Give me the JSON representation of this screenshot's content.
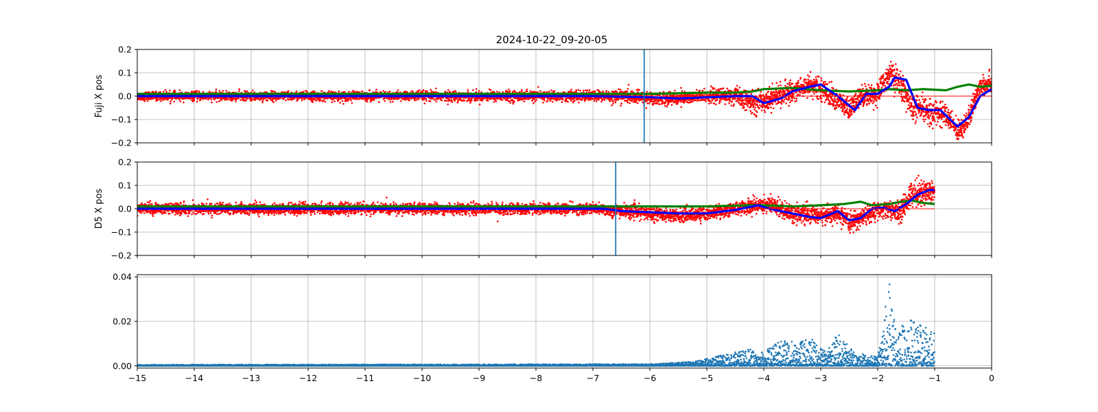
{
  "figure": {
    "title": "2024-10-22_09-20-05"
  },
  "chart_data": [
    {
      "type": "scatter",
      "ylabel": "Fuji X pos",
      "xlim": [
        -15,
        0
      ],
      "ylim": [
        -0.2,
        0.2
      ],
      "yticks": [
        -0.2,
        -0.1,
        0.0,
        0.1,
        0.2
      ],
      "ytick_labels": [
        "−0.2",
        "−0.1",
        "0.0",
        "0.1",
        "0.2"
      ],
      "grid": true,
      "vline_x": -6.1,
      "hline_y": 0.0,
      "hline_range": [
        -4.0,
        0.0
      ],
      "colors": {
        "scatter": "#ff0000",
        "green": "#008000",
        "blue": "#0000ff",
        "vline": "#1f77b4"
      },
      "series": [
        {
          "color": "red",
          "style": "scatter-noise",
          "x": [
            -15,
            -7,
            -6.5,
            -6.0,
            -5.5,
            -5.0,
            -4.5,
            -4.2,
            -4.0,
            -3.5,
            -3.2,
            -3.0,
            -2.7,
            -2.5,
            -2.3,
            -2.0,
            -1.8,
            -1.6,
            -1.4,
            -1.2,
            -1.0,
            -0.8,
            -0.6,
            -0.4,
            -0.2,
            0.0
          ],
          "y": [
            0.0,
            0.0,
            0.0,
            -0.01,
            -0.01,
            0.0,
            0.0,
            -0.03,
            -0.02,
            0.02,
            0.05,
            0.03,
            -0.02,
            -0.06,
            0.0,
            0.01,
            0.1,
            0.05,
            -0.05,
            -0.06,
            -0.07,
            -0.08,
            -0.15,
            -0.1,
            0.05,
            0.06
          ],
          "spread": [
            0.02,
            0.025,
            0.03,
            0.03,
            0.03,
            0.03,
            0.04,
            0.05,
            0.05,
            0.05,
            0.05,
            0.05,
            0.05,
            0.05,
            0.05,
            0.05,
            0.06,
            0.06,
            0.06,
            0.06,
            0.06,
            0.05,
            0.05,
            0.05,
            0.05,
            0.05
          ]
        },
        {
          "color": "green",
          "style": "thick-line",
          "x": [
            -15,
            -6,
            -5,
            -4.5,
            -4.2,
            -4.0,
            -3.5,
            -3.0,
            -2.5,
            -2.0,
            -1.8,
            -1.5,
            -1.2,
            -0.8,
            -0.6,
            -0.4,
            -0.2,
            0.0
          ],
          "y": [
            0.01,
            0.01,
            0.015,
            0.015,
            0.02,
            0.03,
            0.035,
            0.025,
            0.02,
            0.025,
            0.03,
            0.025,
            0.03,
            0.025,
            0.04,
            0.05,
            0.04,
            0.045
          ]
        },
        {
          "color": "blue",
          "style": "thick-line",
          "x": [
            -15,
            -7,
            -6.0,
            -5.5,
            -5.0,
            -4.5,
            -4.2,
            -4.0,
            -3.7,
            -3.5,
            -3.2,
            -3.0,
            -2.7,
            -2.4,
            -2.2,
            -2.0,
            -1.8,
            -1.7,
            -1.5,
            -1.3,
            -1.1,
            -0.9,
            -0.6,
            -0.4,
            -0.2,
            0.0
          ],
          "y": [
            0.0,
            0.0,
            -0.005,
            -0.01,
            -0.005,
            0.0,
            0.0,
            -0.03,
            -0.01,
            0.02,
            0.04,
            0.05,
            0.0,
            -0.06,
            0.01,
            0.01,
            0.04,
            0.08,
            0.07,
            -0.05,
            -0.06,
            -0.06,
            -0.13,
            -0.09,
            0.0,
            0.03
          ]
        }
      ]
    },
    {
      "type": "scatter",
      "ylabel": "D5 X pos",
      "xlim": [
        -15,
        0
      ],
      "ylim": [
        -0.2,
        0.2
      ],
      "yticks": [
        -0.2,
        -0.1,
        0.0,
        0.1,
        0.2
      ],
      "ytick_labels": [
        "−0.2",
        "−0.1",
        "0.0",
        "0.1",
        "0.2"
      ],
      "grid": true,
      "vline_x": -6.6,
      "hline_y": 0.0,
      "hline_range": [
        -4.0,
        -1.0
      ],
      "colors": {
        "scatter": "#ff0000",
        "green": "#008000",
        "blue": "#0000ff",
        "vline": "#1f77b4"
      },
      "series": [
        {
          "color": "red",
          "style": "scatter-noise",
          "x": [
            -15,
            -7,
            -6.5,
            -6.0,
            -5.5,
            -5.0,
            -4.5,
            -4.0,
            -3.8,
            -3.5,
            -3.0,
            -2.7,
            -2.5,
            -2.3,
            -2.0,
            -1.8,
            -1.6,
            -1.4,
            -1.2,
            -1.0
          ],
          "y": [
            0.0,
            0.0,
            -0.01,
            -0.02,
            -0.03,
            -0.02,
            0.0,
            0.02,
            0.01,
            -0.02,
            -0.03,
            -0.02,
            -0.06,
            -0.04,
            -0.01,
            0.0,
            -0.02,
            0.07,
            0.07,
            0.08
          ],
          "spread": [
            0.025,
            0.025,
            0.03,
            0.03,
            0.03,
            0.03,
            0.03,
            0.04,
            0.04,
            0.04,
            0.04,
            0.04,
            0.04,
            0.04,
            0.04,
            0.04,
            0.05,
            0.06,
            0.06,
            0.05
          ]
        },
        {
          "color": "green",
          "style": "thick-line",
          "x": [
            -15,
            -6.5,
            -5.0,
            -4.2,
            -4.0,
            -3.5,
            -3.0,
            -2.6,
            -2.3,
            -2.1,
            -1.8,
            -1.6,
            -1.4,
            -1.2,
            -1.0
          ],
          "y": [
            0.01,
            0.01,
            0.01,
            0.015,
            0.015,
            0.01,
            0.015,
            0.02,
            0.03,
            0.015,
            0.02,
            0.03,
            0.035,
            0.025,
            0.02
          ]
        },
        {
          "color": "blue",
          "style": "thick-line",
          "x": [
            -15,
            -6.8,
            -6.5,
            -6.0,
            -5.5,
            -5.0,
            -4.5,
            -4.1,
            -3.9,
            -3.5,
            -3.2,
            -3.0,
            -2.7,
            -2.5,
            -2.3,
            -2.1,
            -1.9,
            -1.7,
            -1.5,
            -1.3,
            -1.1,
            -1.0
          ],
          "y": [
            0.0,
            0.0,
            -0.01,
            -0.015,
            -0.02,
            -0.02,
            -0.005,
            0.015,
            0.0,
            -0.02,
            -0.035,
            -0.04,
            -0.01,
            -0.05,
            -0.04,
            0.0,
            0.005,
            -0.01,
            0.02,
            0.06,
            0.08,
            0.08
          ]
        }
      ]
    },
    {
      "type": "scatter",
      "xlim": [
        -15,
        0
      ],
      "ylim": [
        -0.001,
        0.041
      ],
      "yticks": [
        0.0,
        0.02,
        0.04
      ],
      "ytick_labels": [
        "0.00",
        "0.02",
        "0.04"
      ],
      "xticks": [
        -15,
        -14,
        -13,
        -12,
        -11,
        -10,
        -9,
        -8,
        -7,
        -6,
        -5,
        -4,
        -3,
        -2,
        -1,
        0
      ],
      "xtick_labels": [
        "−15",
        "−14",
        "−13",
        "−12",
        "−11",
        "−10",
        "−9",
        "−8",
        "−7",
        "−6",
        "−5",
        "−4",
        "−3",
        "−2",
        "−1",
        "0"
      ],
      "grid": true,
      "colors": {
        "scatter": "#1f77b4"
      },
      "series": [
        {
          "color": "blue",
          "style": "spiky-scatter",
          "x": [
            -15,
            -6,
            -5.2,
            -4.2,
            -4.1,
            -3.6,
            -3.4,
            -3.2,
            -2.9,
            -2.7,
            -2.6,
            -2.4,
            -2.0,
            -1.85,
            -1.8,
            -1.7,
            -1.5,
            -1.4,
            -1.3,
            -1.1,
            -1.0
          ],
          "y": [
            0.0005,
            0.0008,
            0.002,
            0.008,
            0.005,
            0.013,
            0.01,
            0.013,
            0.006,
            0.015,
            0.012,
            0.006,
            0.004,
            0.03,
            0.04,
            0.02,
            0.018,
            0.022,
            0.02,
            0.016,
            0.016
          ]
        }
      ]
    }
  ]
}
